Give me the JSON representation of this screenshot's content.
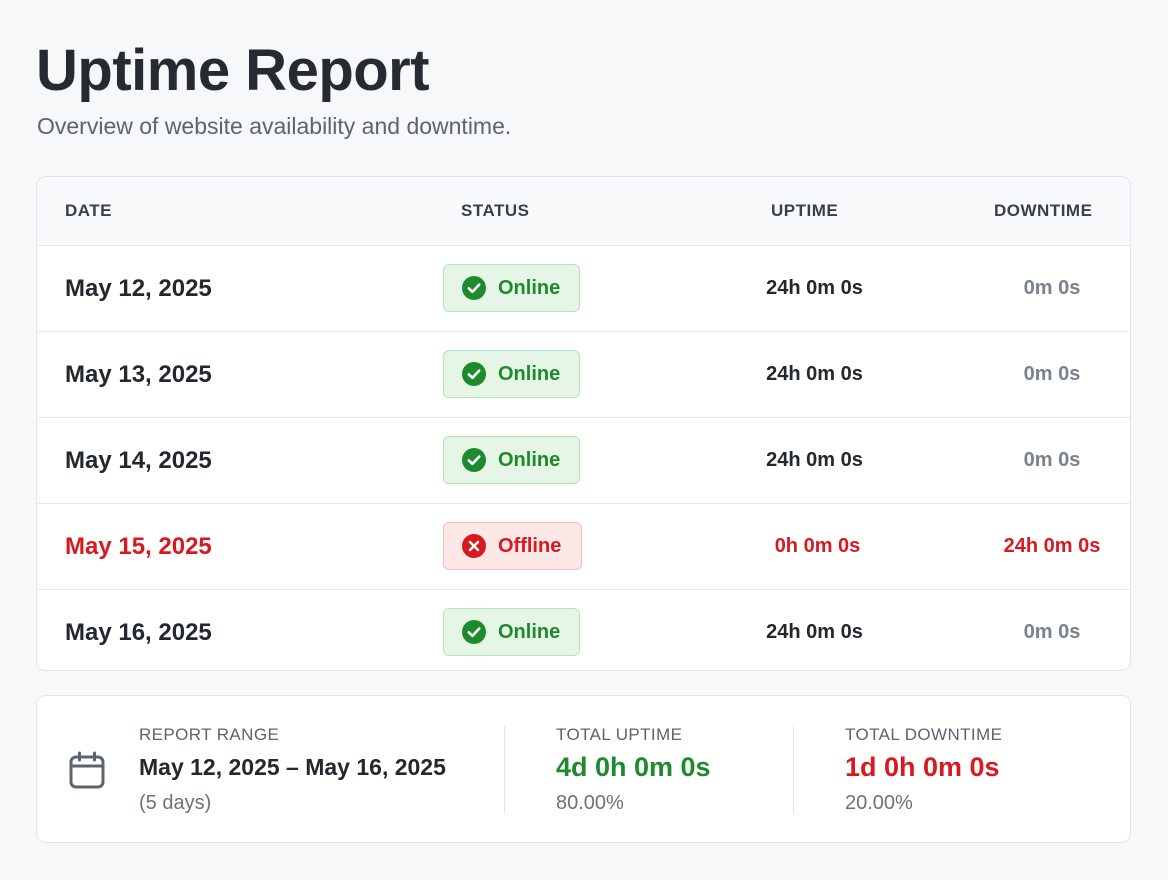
{
  "page": {
    "title": "Uptime Report",
    "subtitle": "Overview of website availability and downtime."
  },
  "table": {
    "headers": {
      "date": "DATE",
      "status": "STATUS",
      "uptime": "UPTIME",
      "downtime": "DOWNTIME"
    },
    "rows": [
      {
        "date": "May 12, 2025",
        "status": "Online",
        "uptime": "24h 0m 0s",
        "downtime": "0m 0s"
      },
      {
        "date": "May 13, 2025",
        "status": "Online",
        "uptime": "24h 0m 0s",
        "downtime": "0m 0s"
      },
      {
        "date": "May 14, 2025",
        "status": "Online",
        "uptime": "24h 0m 0s",
        "downtime": "0m 0s"
      },
      {
        "date": "May 15, 2025",
        "status": "Offline",
        "uptime": "0h 0m 0s",
        "downtime": "24h 0m 0s"
      },
      {
        "date": "May 16, 2025",
        "status": "Online",
        "uptime": "24h 0m 0s",
        "downtime": "0m 0s"
      }
    ]
  },
  "summary": {
    "range_label": "REPORT RANGE",
    "range_value": "May 12, 2025 – May 16, 2025",
    "range_sub": "(5 days)",
    "uptime_label": "TOTAL UPTIME",
    "uptime_value": "4d 0h 0m 0s",
    "uptime_pct": "80.00%",
    "downtime_label": "TOTAL DOWNTIME",
    "downtime_value": "1d 0h 0m 0s",
    "downtime_pct": "20.00%"
  },
  "icons": {
    "online": "check-circle-icon",
    "offline": "x-circle-icon",
    "calendar": "calendar-icon"
  },
  "colors": {
    "online": "#1d8a2e",
    "offline": "#d71920",
    "muted": "#7a828d"
  }
}
